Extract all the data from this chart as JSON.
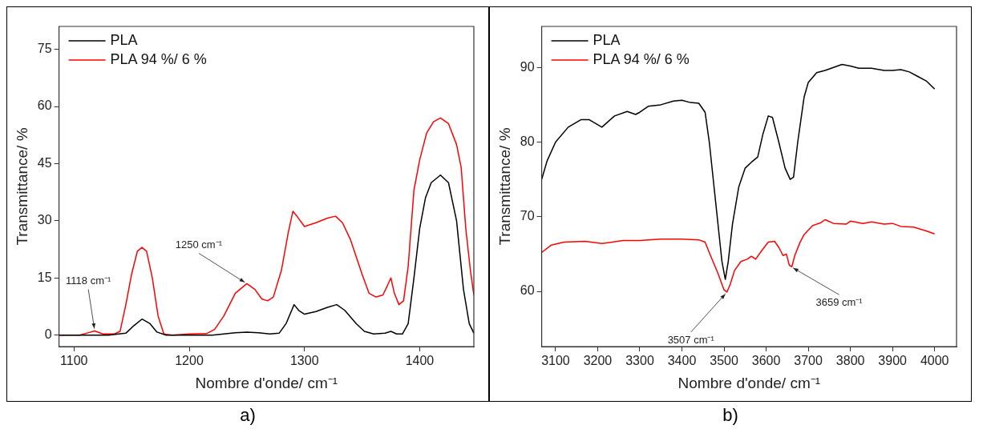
{
  "chart_data": [
    {
      "type": "line",
      "xlabel": "Nombre d'onde/ cm⁻¹",
      "ylabel": "Transmittance/ %",
      "xlim": [
        1087,
        1447
      ],
      "ylim": [
        -3,
        81
      ],
      "xticks": [
        1100,
        1200,
        1300,
        1400
      ],
      "yticks": [
        0,
        15,
        30,
        45,
        60,
        75
      ],
      "legend": "top left",
      "annotations": [
        {
          "text": "1118 cm⁻¹",
          "x": 1118,
          "y": 1.1
        },
        {
          "text": "1250 cm⁻¹",
          "x": 1250,
          "y": 13.5
        },
        "a)"
      ],
      "series": [
        {
          "name": "PLA",
          "color": "#000000",
          "x": [
            1087,
            1100,
            1130,
            1145,
            1152,
            1159,
            1166,
            1172,
            1180,
            1220,
            1240,
            1250,
            1260,
            1270,
            1278,
            1284,
            1291,
            1295,
            1300,
            1310,
            1320,
            1328,
            1335,
            1345,
            1352,
            1360,
            1370,
            1375,
            1380,
            1385,
            1390,
            1395,
            1400,
            1405,
            1410,
            1418,
            1425,
            1432,
            1438,
            1443,
            1447
          ],
          "values": [
            0,
            0,
            0,
            0.5,
            2.5,
            4.2,
            3,
            0.8,
            0,
            0,
            0.6,
            0.8,
            0.6,
            0.3,
            0.5,
            3,
            8,
            6.5,
            5.5,
            6.2,
            7.3,
            8,
            6.5,
            3,
            1,
            0.3,
            0.5,
            1,
            0.3,
            0.3,
            3,
            15,
            28,
            36,
            40,
            42,
            40,
            30,
            12,
            3,
            0.5
          ]
        },
        {
          "name": "PLA 94 %/ 6 %",
          "color": "#ff0000",
          "x": [
            1087,
            1105,
            1112,
            1118,
            1125,
            1135,
            1140,
            1145,
            1150,
            1155,
            1159,
            1163,
            1168,
            1173,
            1178,
            1185,
            1200,
            1215,
            1222,
            1230,
            1240,
            1250,
            1257,
            1263,
            1268,
            1273,
            1280,
            1286,
            1290,
            1294,
            1300,
            1310,
            1320,
            1327,
            1333,
            1340,
            1350,
            1356,
            1362,
            1368,
            1372,
            1375,
            1378,
            1382,
            1386,
            1390,
            1395,
            1400,
            1406,
            1412,
            1418,
            1425,
            1432,
            1436,
            1440,
            1444,
            1447
          ],
          "values": [
            0,
            0,
            0.6,
            1.1,
            0.3,
            0.3,
            1,
            8,
            16,
            22,
            23,
            22,
            15,
            5,
            0.3,
            0,
            0.3,
            0.4,
            1.5,
            5,
            11,
            13.5,
            12,
            9.5,
            9,
            10,
            17,
            27,
            32.5,
            31,
            28.5,
            29.5,
            30.7,
            31.2,
            29.5,
            25,
            16,
            11,
            10,
            10.5,
            13,
            15,
            11,
            8,
            9,
            18,
            38,
            46,
            53,
            56,
            57,
            55.5,
            50,
            44,
            28,
            17,
            10.5
          ]
        }
      ]
    },
    {
      "type": "line",
      "xlabel": "Nombre d'onde/ cm⁻¹",
      "ylabel": "Transmittance/ %",
      "xlim": [
        3067,
        4052
      ],
      "ylim": [
        52.6,
        95.5
      ],
      "xticks": [
        3100,
        3200,
        3300,
        3400,
        3500,
        3600,
        3700,
        3800,
        3900,
        4000
      ],
      "yticks": [
        60,
        70,
        80,
        90
      ],
      "legend": "top left",
      "annotations": [
        {
          "text": "3507 cm⁻¹",
          "x": 3507,
          "y": 59.9
        },
        {
          "text": "3659 cm⁻¹",
          "x": 3659,
          "y": 63.3
        },
        "b)"
      ],
      "series": [
        {
          "name": "PLA",
          "color": "#000000",
          "x": [
            3067,
            3080,
            3100,
            3130,
            3160,
            3180,
            3210,
            3240,
            3270,
            3290,
            3300,
            3320,
            3350,
            3380,
            3400,
            3420,
            3440,
            3455,
            3465,
            3480,
            3495,
            3503,
            3510,
            3520,
            3535,
            3550,
            3565,
            3580,
            3592,
            3605,
            3615,
            3630,
            3645,
            3657,
            3665,
            3675,
            3690,
            3700,
            3720,
            3740,
            3760,
            3780,
            3800,
            3820,
            3850,
            3880,
            3900,
            3920,
            3940,
            3960,
            3980,
            4000
          ],
          "values": [
            75,
            77.5,
            80,
            82,
            83,
            83,
            82,
            83.5,
            84.1,
            83.7,
            84,
            84.8,
            85,
            85.5,
            85.6,
            85.3,
            85.2,
            84,
            80,
            72,
            64,
            61.6,
            64,
            69,
            74,
            76.5,
            77.3,
            78,
            81,
            83.5,
            83.3,
            80,
            76.5,
            75,
            75.3,
            80,
            86,
            88,
            89.3,
            89.6,
            90,
            90.4,
            90.2,
            89.9,
            89.9,
            89.6,
            89.6,
            89.7,
            89.4,
            88.8,
            88.2,
            87.1
          ]
        },
        {
          "name": "PLA 94 %/ 6 %",
          "color": "#ff0000",
          "x": [
            3067,
            3090,
            3120,
            3170,
            3210,
            3260,
            3300,
            3350,
            3400,
            3440,
            3455,
            3470,
            3485,
            3500,
            3507,
            3515,
            3525,
            3540,
            3555,
            3565,
            3575,
            3590,
            3605,
            3620,
            3630,
            3640,
            3648,
            3655,
            3661,
            3668,
            3680,
            3690,
            3710,
            3730,
            3740,
            3760,
            3790,
            3800,
            3830,
            3850,
            3880,
            3900,
            3920,
            3950,
            3980,
            4000
          ],
          "values": [
            65.2,
            66.2,
            66.6,
            66.7,
            66.4,
            66.8,
            66.8,
            67,
            67,
            66.9,
            66.6,
            64.5,
            62.5,
            60.2,
            59.9,
            61,
            62.8,
            64,
            64.3,
            64.7,
            64.3,
            65.5,
            66.6,
            66.7,
            65.9,
            64.8,
            65,
            63.5,
            63.3,
            64.8,
            66.5,
            67.6,
            68.8,
            69.2,
            69.6,
            69.1,
            69,
            69.4,
            69.1,
            69.3,
            69,
            69.1,
            68.7,
            68.6,
            68.1,
            67.7
          ]
        }
      ]
    }
  ]
}
